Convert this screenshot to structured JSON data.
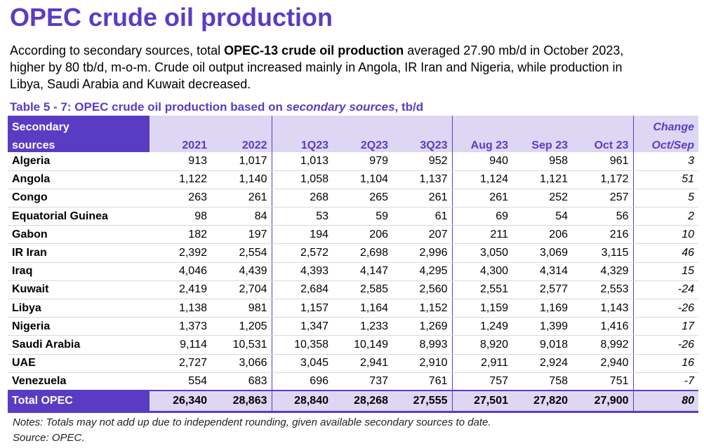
{
  "title": "OPEC crude oil production",
  "intro": {
    "line1_pre": "According to secondary sources, total ",
    "line1_bold": "OPEC-13 crude oil production",
    "line1_post": " averaged 27.90 mb/d in October 2023,",
    "line2": "higher by 80 tb/d, m-o-m. Crude oil output increased mainly in Angola, IR Iran and Nigeria, while production in",
    "line3": "Libya, Saudi Arabia and Kuwait decreased."
  },
  "table_caption": {
    "pre": "Table 5 - 7: OPEC crude oil production based on ",
    "italic": "secondary sources",
    "post": ", tb/d"
  },
  "table": {
    "header_first_line1": "Secondary",
    "header_first_line2": "sources",
    "change_line1": "Change",
    "change_line2": "Oct/Sep",
    "columns": [
      "2021",
      "2022",
      "1Q23",
      "2Q23",
      "3Q23",
      "Aug 23",
      "Sep 23",
      "Oct 23"
    ],
    "rows": [
      {
        "country": "Algeria",
        "v": [
          "913",
          "1,017",
          "1,013",
          "979",
          "952",
          "940",
          "958",
          "961"
        ],
        "change": "3"
      },
      {
        "country": "Angola",
        "v": [
          "1,122",
          "1,140",
          "1,058",
          "1,104",
          "1,137",
          "1,124",
          "1,121",
          "1,172"
        ],
        "change": "51"
      },
      {
        "country": "Congo",
        "v": [
          "263",
          "261",
          "268",
          "265",
          "261",
          "261",
          "252",
          "257"
        ],
        "change": "5"
      },
      {
        "country": "Equatorial Guinea",
        "v": [
          "98",
          "84",
          "53",
          "59",
          "61",
          "69",
          "54",
          "56"
        ],
        "change": "2"
      },
      {
        "country": "Gabon",
        "v": [
          "182",
          "197",
          "194",
          "206",
          "207",
          "211",
          "206",
          "216"
        ],
        "change": "10"
      },
      {
        "country": "IR Iran",
        "v": [
          "2,392",
          "2,554",
          "2,572",
          "2,698",
          "2,996",
          "3,050",
          "3,069",
          "3,115"
        ],
        "change": "46"
      },
      {
        "country": "Iraq",
        "v": [
          "4,046",
          "4,439",
          "4,393",
          "4,147",
          "4,295",
          "4,300",
          "4,314",
          "4,329"
        ],
        "change": "15"
      },
      {
        "country": "Kuwait",
        "v": [
          "2,419",
          "2,704",
          "2,684",
          "2,585",
          "2,560",
          "2,551",
          "2,577",
          "2,553"
        ],
        "change": "-24"
      },
      {
        "country": "Libya",
        "v": [
          "1,138",
          "981",
          "1,157",
          "1,164",
          "1,152",
          "1,159",
          "1,169",
          "1,143"
        ],
        "change": "-26"
      },
      {
        "country": "Nigeria",
        "v": [
          "1,373",
          "1,205",
          "1,347",
          "1,233",
          "1,269",
          "1,249",
          "1,399",
          "1,416"
        ],
        "change": "17"
      },
      {
        "country": "Saudi Arabia",
        "v": [
          "9,114",
          "10,531",
          "10,358",
          "10,149",
          "8,993",
          "8,920",
          "9,018",
          "8,992"
        ],
        "change": "-26"
      },
      {
        "country": "UAE",
        "v": [
          "2,727",
          "3,066",
          "3,045",
          "2,941",
          "2,910",
          "2,911",
          "2,924",
          "2,940"
        ],
        "change": "16"
      },
      {
        "country": "Venezuela",
        "v": [
          "554",
          "683",
          "696",
          "737",
          "761",
          "757",
          "758",
          "751"
        ],
        "change": "-7"
      }
    ],
    "total": {
      "label": "Total  OPEC",
      "v": [
        "26,340",
        "28,863",
        "28,840",
        "28,268",
        "27,555",
        "27,501",
        "27,820",
        "27,900"
      ],
      "change": "80"
    }
  },
  "notes": {
    "line1": "Notes: Totals may not add up due to independent rounding, given available secondary sources to date.",
    "line2": "Source: OPEC."
  },
  "colors": {
    "accent": "#5a3cc4",
    "header_fill": "#ded7f3"
  }
}
